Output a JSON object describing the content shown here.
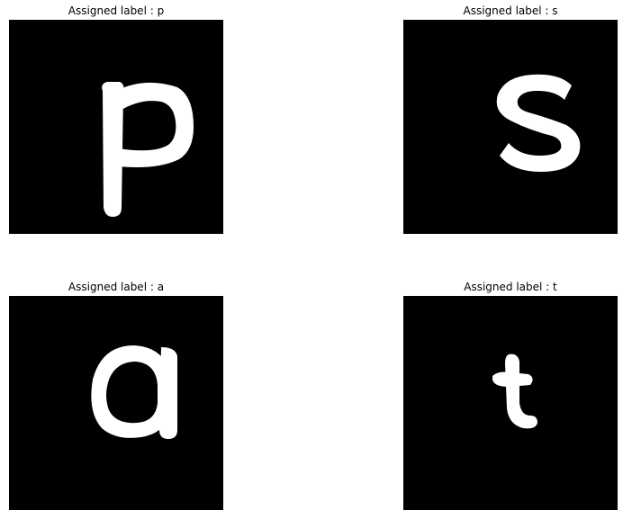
{
  "panels": [
    {
      "title": "Assigned label : p",
      "glyph": "p"
    },
    {
      "title": "Assigned label : s",
      "glyph": "s"
    },
    {
      "title": "Assigned label : a",
      "glyph": "a"
    },
    {
      "title": "Assigned label : t",
      "glyph": "t"
    }
  ],
  "colors": {
    "background": "#ffffff",
    "image_background": "#000000",
    "glyph": "#ffffff",
    "title_text": "#000000"
  }
}
